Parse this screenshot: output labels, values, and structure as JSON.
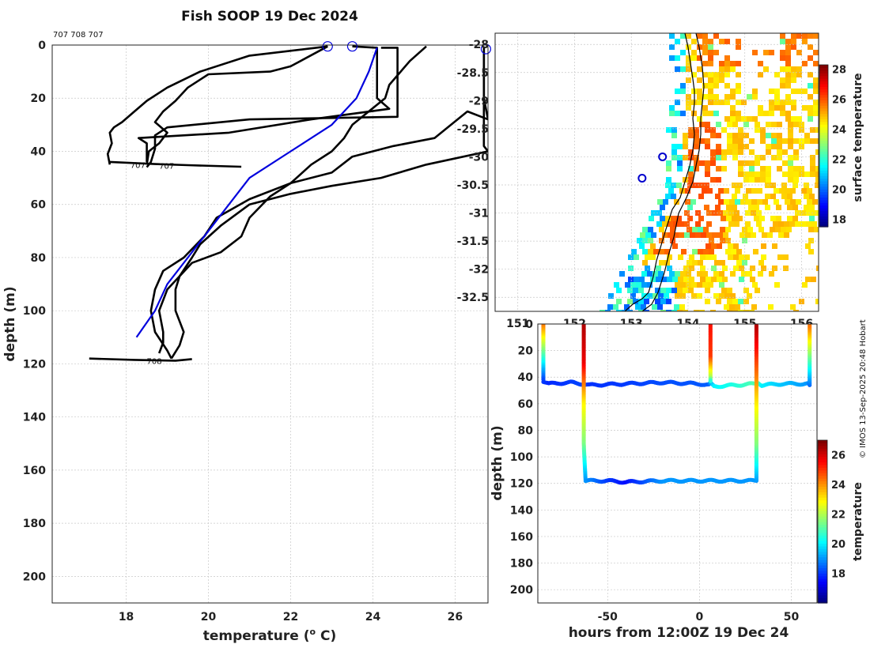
{
  "chart_data": [
    {
      "type": "line",
      "title": "Fish SOOP 19 Dec 2024",
      "xlabel": "temperature (",
      "xlabel_sup": "o",
      "xlabel_end": " C)",
      "ylabel": "depth (m)",
      "xlim": [
        16.2,
        26.8
      ],
      "ylim": [
        0,
        210
      ],
      "xticks": [
        18,
        20,
        22,
        24,
        26
      ],
      "yticks": [
        0,
        20,
        40,
        60,
        80,
        100,
        120,
        140,
        160,
        180,
        200
      ],
      "platform_ids": "707 708 707",
      "series": [
        {
          "name": "cast-1",
          "color": "#000000",
          "points": [
            [
              22.9,
              0.5
            ],
            [
              21,
              4
            ],
            [
              19.8,
              10
            ],
            [
              19,
              16
            ],
            [
              18.5,
              21
            ],
            [
              18.2,
              25
            ],
            [
              17.9,
              29
            ],
            [
              17.7,
              31
            ],
            [
              17.6,
              33
            ],
            [
              17.65,
              37
            ],
            [
              17.55,
              41
            ],
            [
              17.6,
              45
            ]
          ]
        },
        {
          "name": "cast-2",
          "color": "#000000",
          "points": [
            [
              22.9,
              0.5
            ],
            [
              22,
              8
            ],
            [
              21.5,
              10
            ],
            [
              20,
              11
            ],
            [
              19.5,
              16
            ],
            [
              19.2,
              21
            ],
            [
              18.9,
              25
            ],
            [
              18.7,
              29
            ],
            [
              19,
              33
            ],
            [
              18.8,
              37
            ],
            [
              18.55,
              40
            ],
            [
              18.5,
              45
            ]
          ]
        },
        {
          "name": "cast-3",
          "color": "#000000",
          "points": [
            [
              24.2,
              1
            ],
            [
              24.6,
              1
            ],
            [
              24.6,
              20
            ],
            [
              24.6,
              27
            ],
            [
              21,
              28
            ],
            [
              19,
              31
            ],
            [
              18.7,
              34
            ],
            [
              18.7,
              39
            ],
            [
              18.6,
              44
            ],
            [
              18.5,
              46
            ]
          ]
        },
        {
          "name": "cast-4",
          "color": "#000000",
          "points": [
            [
              23.5,
              0.5
            ],
            [
              24.1,
              1
            ],
            [
              24.1,
              20
            ],
            [
              24.4,
              24
            ],
            [
              22.5,
              28
            ],
            [
              20.5,
              33
            ],
            [
              18.3,
              35
            ],
            [
              18.5,
              37
            ],
            [
              18.5,
              44
            ]
          ]
        },
        {
          "name": "cast-5",
          "color": "#000000",
          "points": [
            [
              25.3,
              0.5
            ],
            [
              24.9,
              6
            ],
            [
              24.4,
              15
            ],
            [
              24.3,
              20
            ],
            [
              23.5,
              30
            ],
            [
              23.3,
              35
            ],
            [
              23,
              40
            ],
            [
              22.5,
              45
            ],
            [
              22,
              52
            ],
            [
              21.5,
              57
            ],
            [
              21,
              65
            ],
            [
              20.8,
              72
            ],
            [
              20.3,
              78
            ],
            [
              19.6,
              82
            ],
            [
              19.3,
              87
            ],
            [
              19,
              92
            ],
            [
              18.8,
              100
            ],
            [
              18.9,
              108
            ],
            [
              18.9,
              112
            ],
            [
              18.8,
              116
            ]
          ]
        },
        {
          "name": "cast-6",
          "color": "#000000",
          "points": [
            [
              26.7,
              0.5
            ],
            [
              26.7,
              12
            ],
            [
              26.7,
              20
            ],
            [
              26.8,
              28
            ],
            [
              26.3,
              25
            ],
            [
              25.5,
              35
            ],
            [
              24.5,
              38
            ],
            [
              23.5,
              42
            ],
            [
              23,
              48
            ],
            [
              22,
              52
            ],
            [
              21,
              58
            ],
            [
              20.2,
              65
            ],
            [
              19.9,
              72
            ],
            [
              19.4,
              80
            ],
            [
              18.9,
              85
            ],
            [
              18.7,
              92
            ],
            [
              18.6,
              100
            ],
            [
              18.7,
              108
            ],
            [
              19,
              115
            ],
            [
              19.1,
              118
            ]
          ]
        },
        {
          "name": "cast-7",
          "color": "#000000",
          "points": [
            [
              26.7,
              1
            ],
            [
              26.7,
              38
            ],
            [
              26.8,
              40
            ],
            [
              25.3,
              45
            ],
            [
              24.2,
              50
            ],
            [
              23,
              53
            ],
            [
              22,
              56
            ],
            [
              21,
              60
            ],
            [
              20.3,
              68
            ],
            [
              19.8,
              75
            ],
            [
              19.6,
              80
            ],
            [
              19.3,
              87
            ],
            [
              19.2,
              92
            ],
            [
              19.2,
              100
            ],
            [
              19.4,
              108
            ],
            [
              19.3,
              113
            ],
            [
              19.1,
              118
            ]
          ]
        },
        {
          "name": "bottom-1",
          "color": "#000000",
          "points": [
            [
              17.6,
              44
            ],
            [
              18.7,
              44.8
            ],
            [
              19.5,
              45.2
            ],
            [
              20.8,
              45.8
            ]
          ]
        },
        {
          "name": "bottom-2",
          "color": "#000000",
          "points": [
            [
              17.1,
              118
            ],
            [
              18.2,
              118.5
            ],
            [
              19.2,
              118.8
            ],
            [
              19.6,
              118.2
            ]
          ]
        },
        {
          "name": "climatology",
          "color": "#0000dd",
          "points": [
            [
              24.1,
              1
            ],
            [
              23.9,
              10
            ],
            [
              23.6,
              20
            ],
            [
              23,
              30
            ],
            [
              22,
              40
            ],
            [
              21,
              50
            ],
            [
              20.5,
              60
            ],
            [
              20,
              70
            ],
            [
              19.5,
              80
            ],
            [
              19,
              90
            ],
            [
              18.7,
              100
            ],
            [
              18.25,
              110
            ]
          ]
        }
      ],
      "markers": [
        [
          22.9,
          0.5
        ],
        [
          23.5,
          0.5
        ],
        [
          26.75,
          1.5
        ]
      ],
      "annotations": [
        {
          "text": "707",
          "x": 18.1,
          "y": 46.2
        },
        {
          "text": "707",
          "x": 18.8,
          "y": 46.6
        },
        {
          "text": "708",
          "x": 18.5,
          "y": 120
        }
      ]
    },
    {
      "type": "heatmap",
      "name": "surface temperature map",
      "xlim": [
        150.6,
        156.3
      ],
      "ylim": [
        -32.75,
        -27.8
      ],
      "xticks": [
        151,
        152,
        153,
        154,
        155,
        156
      ],
      "yticks": [
        -28,
        -28.5,
        -29,
        -29.5,
        -30,
        -30.5,
        -31,
        -31.5,
        -32,
        -32.5
      ],
      "colorbar_label": "surface temperature",
      "colorbar_range": [
        17.5,
        28.3
      ],
      "colorbar_ticks": [
        18,
        20,
        22,
        24,
        26,
        28
      ],
      "stations": [
        [
          153.19,
          -30.38
        ],
        [
          153.55,
          -30.0
        ]
      ]
    },
    {
      "type": "scatter",
      "name": "depth-time section",
      "xlabel": "hours from 12:00Z 19 Dec 24",
      "ylabel": "depth (m)",
      "xlim": [
        -88,
        64
      ],
      "ylim": [
        0,
        210
      ],
      "xticks": [
        -50,
        0,
        50
      ],
      "yticks": [
        0,
        20,
        40,
        60,
        80,
        100,
        120,
        140,
        160,
        180,
        200
      ],
      "colorbar_label": "temperature",
      "colorbar_range": [
        16,
        27
      ],
      "colorbar_ticks": [
        18,
        20,
        22,
        24,
        26
      ],
      "segments": [
        {
          "name": "trace-1",
          "x": [
            -85,
            -85,
            -82,
            -70,
            -64,
            -60,
            -40,
            -20,
            0,
            5,
            6,
            8,
            20,
            30,
            32,
            34,
            45,
            59,
            60,
            60
          ],
          "y": [
            0,
            43,
            45,
            44,
            45,
            46,
            45,
            44,
            45,
            46,
            45,
            47,
            46,
            45,
            44,
            46,
            45,
            45,
            46,
            0
          ],
          "temp": [
            24.5,
            18,
            17.8,
            18,
            18.1,
            17.9,
            18,
            18.2,
            18.3,
            18.4,
            19,
            20,
            20.5,
            21,
            20.8,
            20,
            19.5,
            19,
            18.5,
            24.5
          ]
        },
        {
          "name": "trace-2",
          "x": [
            -63,
            -63,
            -63,
            -63,
            -62,
            -50,
            -40,
            -20,
            0,
            20,
            31,
            31,
            31,
            31
          ],
          "y": [
            0,
            30,
            60,
            90,
            118,
            118,
            119,
            118,
            118,
            118,
            118,
            90,
            60,
            0
          ],
          "temp": [
            26.5,
            25.8,
            23,
            21.5,
            19,
            18,
            17.5,
            19,
            19,
            19,
            19,
            21.5,
            23,
            26.5
          ]
        },
        {
          "name": "trace-3",
          "x": [
            6,
            6,
            6,
            6
          ],
          "y": [
            0,
            25,
            40,
            44
          ],
          "temp": [
            25.5,
            25,
            22,
            20
          ]
        }
      ]
    },
    {
      "type": "table",
      "credit": "© IMOS 13-Sep-2025 20:48 Hobart"
    }
  ]
}
